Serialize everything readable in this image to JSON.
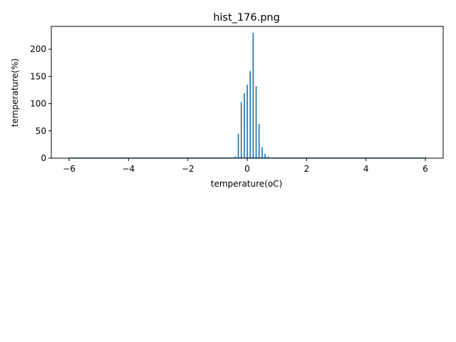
{
  "chart_data": {
    "type": "bar",
    "title": "hist_176.png",
    "xlabel": "temperature(oC)",
    "ylabel": "temperature(%)",
    "xlim": [
      -6.6,
      6.6
    ],
    "ylim": [
      0,
      242
    ],
    "xticks": [
      -6,
      -4,
      -2,
      0,
      2,
      4,
      6
    ],
    "yticks": [
      0,
      50,
      100,
      150,
      200
    ],
    "bar_width": 0.04,
    "bar_color": "#1f77b4",
    "grid": false,
    "bins": [
      {
        "x": -6.0,
        "value": 1
      },
      {
        "x": -0.6,
        "value": 1
      },
      {
        "x": -0.5,
        "value": 1
      },
      {
        "x": -0.4,
        "value": 3
      },
      {
        "x": -0.3,
        "value": 45
      },
      {
        "x": -0.2,
        "value": 103
      },
      {
        "x": -0.1,
        "value": 119
      },
      {
        "x": 0.0,
        "value": 135
      },
      {
        "x": 0.1,
        "value": 160
      },
      {
        "x": 0.2,
        "value": 230
      },
      {
        "x": 0.3,
        "value": 132
      },
      {
        "x": 0.4,
        "value": 63
      },
      {
        "x": 0.5,
        "value": 20
      },
      {
        "x": 0.6,
        "value": 8
      },
      {
        "x": 0.7,
        "value": 3
      },
      {
        "x": 6.0,
        "value": 1
      }
    ]
  }
}
